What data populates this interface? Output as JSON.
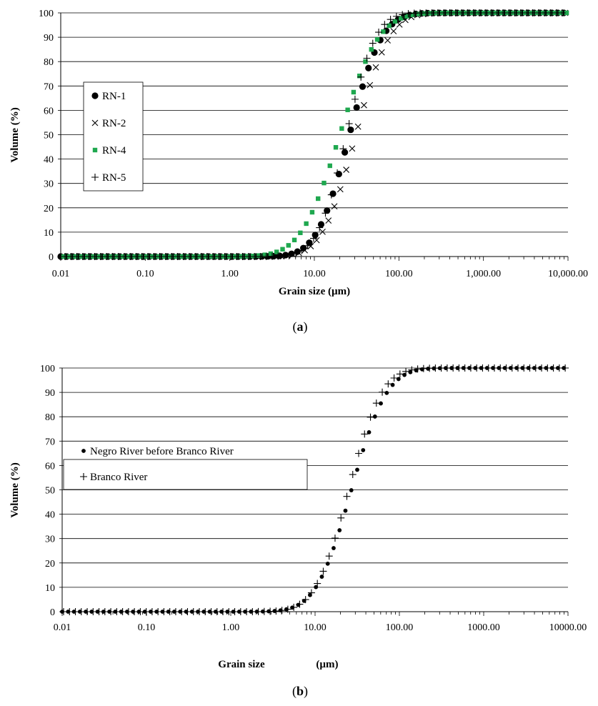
{
  "chart_data": [
    {
      "panel_label_text": "a",
      "type": "scatter",
      "xscale": "log",
      "xlim": [
        0.01,
        10000
      ],
      "ylim": [
        0,
        100
      ],
      "xticks": [
        "0.01",
        "0.10",
        "1.00",
        "10.00",
        "100.00",
        "1,000.00",
        "10,000.00"
      ],
      "yticks": [
        "0",
        "10",
        "20",
        "30",
        "40",
        "50",
        "60",
        "70",
        "80",
        "90",
        "100"
      ],
      "xlabel": "Grain size (µm)",
      "ylabel": "Volume (%)",
      "grid": "horizontal",
      "legend": {
        "placement": "left",
        "entries": [
          "RN-1",
          "RN-2",
          "RN-4",
          "RN-5"
        ]
      },
      "series": [
        {
          "name": "RN-1",
          "marker": "circle",
          "color": "#000000",
          "d50": 26,
          "spread": 0.3
        },
        {
          "name": "RN-2",
          "marker": "x",
          "color": "#000000",
          "d50": 31,
          "spread": 0.31
        },
        {
          "name": "RN-4",
          "marker": "square",
          "color": "#1fa84f",
          "d50": 20,
          "spread": 0.36
        },
        {
          "name": "RN-5",
          "marker": "plus",
          "color": "#000000",
          "d50": 24,
          "spread": 0.27
        }
      ]
    },
    {
      "panel_label_text": "b",
      "type": "scatter",
      "xscale": "log",
      "xlim": [
        0.01,
        10000
      ],
      "ylim": [
        0,
        100
      ],
      "xticks": [
        "0.01",
        "0.10",
        "1.00",
        "10.00",
        "100.00",
        "1000.00",
        "10000.00"
      ],
      "yticks": [
        "0",
        "10",
        "20",
        "30",
        "40",
        "50",
        "60",
        "70",
        "80",
        "90",
        "100"
      ],
      "xlabel_left": "Grain size",
      "xlabel_right": "(µm)",
      "ylabel": "Volume (%)",
      "grid": "horizontal",
      "legend": {
        "placement": "upper-left",
        "entries": [
          "Negro River before Branco River",
          "Branco River"
        ]
      },
      "series": [
        {
          "name": "Negro River before Branco River",
          "marker": "dot",
          "color": "#000000",
          "d50": 27,
          "spread": 0.33
        },
        {
          "name": "Branco River",
          "marker": "plus",
          "color": "#000000",
          "d50": 25,
          "spread": 0.31
        }
      ]
    }
  ]
}
